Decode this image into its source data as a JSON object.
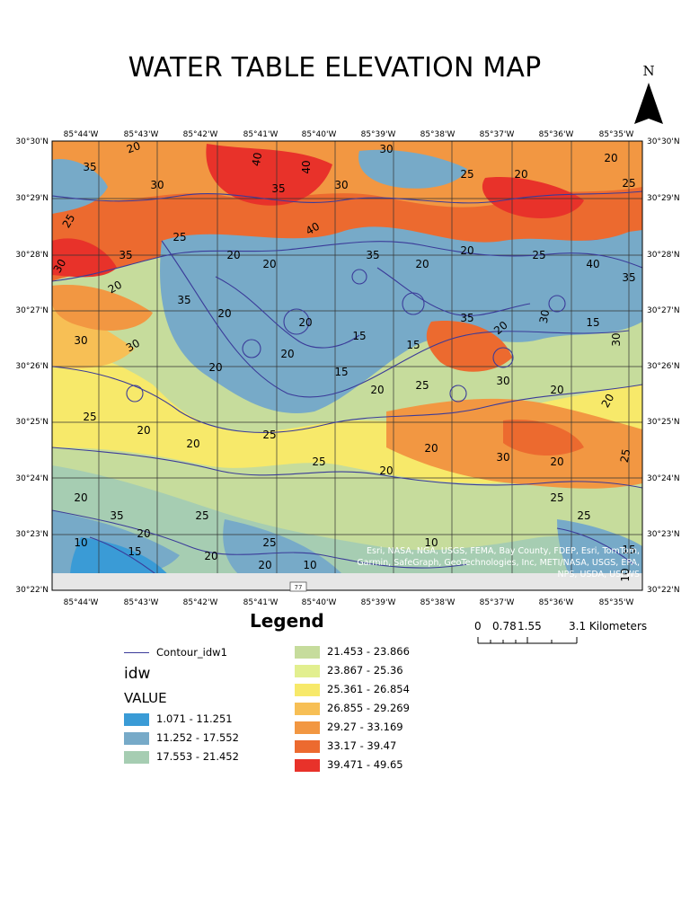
{
  "title": "WATER TABLE ELEVATION MAP",
  "north_arrow": {
    "label": "N"
  },
  "map": {
    "lon_labels": [
      "85°44'W",
      "85°43'W",
      "85°42'W",
      "85°41'W",
      "85°40'W",
      "85°39'W",
      "85°38'W",
      "85°37'W",
      "85°36'W",
      "85°35'W"
    ],
    "lat_labels": [
      "30°30'N",
      "30°29'N",
      "30°28'N",
      "30°27'N",
      "30°26'N",
      "30°25'N",
      "30°24'N",
      "30°23'N",
      "30°22'N"
    ],
    "attribution_lines": [
      "Esri, NASA, NGA, USGS, FEMA, Bay County, FDEP, Esri, TomTom,",
      "Garmin, SafeGraph, GeoTechnologies, Inc, METI/NASA, USGS, EPA,",
      "NPS, USDA, USFWS"
    ],
    "road_shield": "77",
    "contour_labels": [
      "35",
      "20",
      "30",
      "40",
      "25",
      "15",
      "10"
    ]
  },
  "legend": {
    "title": "Legend",
    "contour_label": "Contour_idw1",
    "layer_name": "idw",
    "field_name": "VALUE",
    "classes": [
      {
        "range": "1.071 - 11.251",
        "color": "#3a9bd6"
      },
      {
        "range": "11.252 - 17.552",
        "color": "#77aac8"
      },
      {
        "range": "17.553 - 21.452",
        "color": "#a6cdb2"
      },
      {
        "range": "21.453 - 23.866",
        "color": "#c6dc9c"
      },
      {
        "range": "23.867 - 25.36",
        "color": "#e2ef8f"
      },
      {
        "range": "25.361 - 26.854",
        "color": "#f7e96a"
      },
      {
        "range": "26.855 - 29.269",
        "color": "#f7bf55"
      },
      {
        "range": "29.27 - 33.169",
        "color": "#f29742"
      },
      {
        "range": "33.17 - 39.47",
        "color": "#ec6a2f"
      },
      {
        "range": "39.471 - 49.65",
        "color": "#e8322a"
      }
    ]
  },
  "scalebar": {
    "labels": [
      "0",
      "0.78",
      "1.55",
      "3.1 Kilometers"
    ]
  },
  "colors": {
    "contour": "#3b3b99",
    "base": "#e6e6e6"
  }
}
